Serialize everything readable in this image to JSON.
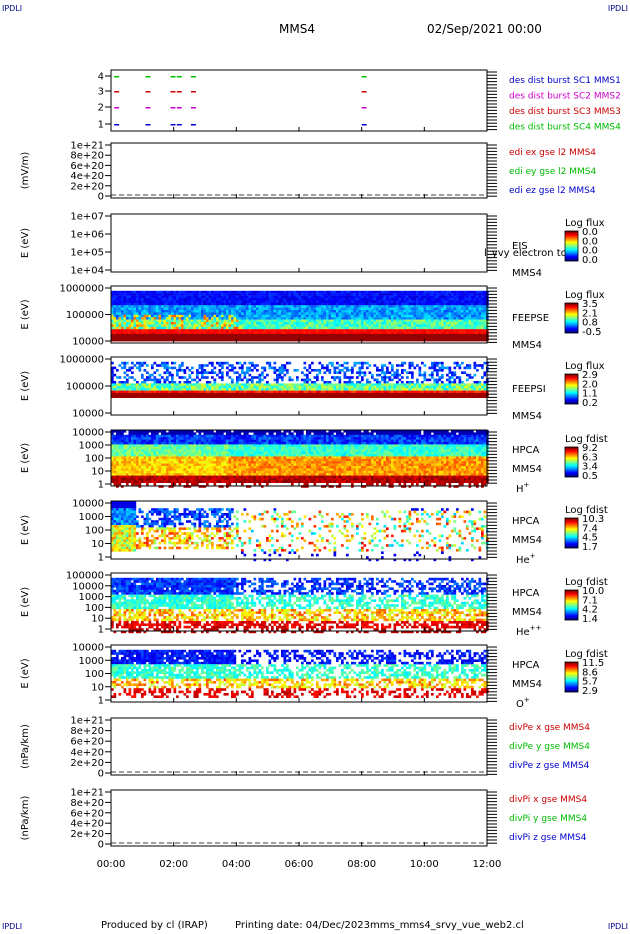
{
  "corner_label": "IPDLI",
  "header": {
    "title": "MMS4",
    "datetime": "02/Sep/2021 00:00"
  },
  "footer": {
    "produced_by": "Produced by cl (IRAP)",
    "printing_date": "Printing date: 04/Dec/2023",
    "file": "mms_mms4_srvy_vue_web2.cl"
  },
  "time_axis": {
    "ticks": [
      "00:00",
      "02:00",
      "04:00",
      "06:00",
      "08:00",
      "10:00",
      "12:00"
    ],
    "range_hours": [
      0,
      12
    ]
  },
  "colors": {
    "red": "#cc0000",
    "green": "#00bb00",
    "blue": "#0000cc",
    "magenta": "#cc00cc"
  },
  "chart_data": [
    {
      "type": "scatter",
      "name": "burst",
      "yticks": [
        "1",
        "2",
        "3",
        "4"
      ],
      "legend": [
        {
          "text": "des dist burst SC1 MMS1",
          "color": "#0000cc"
        },
        {
          "text": "des dist burst SC2 MMS2",
          "color": "#cc00cc"
        },
        {
          "text": "des dist burst SC3 MMS3",
          "color": "#cc0000"
        },
        {
          "text": "des dist burst SC4 MMS4",
          "color": "#00bb00"
        }
      ],
      "bursts_hours": [
        0.1,
        1.1,
        1.9,
        2.1,
        2.55,
        8.0
      ]
    },
    {
      "type": "line",
      "name": "edi",
      "ylabel": "(mV/m)",
      "yticks": [
        "1e+21",
        "8e+20",
        "6e+20",
        "4e+20",
        "2e+20",
        "0"
      ],
      "legend": [
        {
          "text": "edi ex gse l2 MMS4",
          "color": "#cc0000"
        },
        {
          "text": "edi ey gse l2 MMS4",
          "color": "#00bb00"
        },
        {
          "text": "edi ez gse l2 MMS4",
          "color": "#0000cc"
        }
      ]
    },
    {
      "type": "heatmap",
      "name": "eis",
      "ylabel": "E (eV)",
      "yticks": [
        "1e+07",
        "1e+06",
        "1e+05",
        "1e+04"
      ],
      "instrument": [
        "EIS",
        "MMS4"
      ],
      "overlay_text": "l_yvy electron to",
      "cbar_title": "Log flux",
      "cbar_ticks": [
        "0.0",
        "0.0",
        "0.0",
        "0.0"
      ]
    },
    {
      "type": "heatmap",
      "name": "feepse",
      "ylabel": "E (eV)",
      "yticks": [
        "1000000",
        "100000",
        "10000"
      ],
      "instrument": [
        "FEEPSE",
        "MMS4"
      ],
      "cbar_title": "Log flux",
      "cbar_ticks": [
        "3.5",
        "2.1",
        "0.8",
        "-0.5"
      ]
    },
    {
      "type": "heatmap",
      "name": "feepsi",
      "ylabel": "E (eV)",
      "yticks": [
        "1000000",
        "100000",
        "10000"
      ],
      "instrument": [
        "FEEPSI",
        "MMS4"
      ],
      "cbar_title": "Log flux",
      "cbar_ticks": [
        "2.9",
        "2.0",
        "1.1",
        "0.2"
      ]
    },
    {
      "type": "heatmap",
      "name": "hpca-h",
      "ylabel": "E (eV)",
      "yticks": [
        "10000",
        "1000",
        "100",
        "10",
        "1"
      ],
      "instrument": [
        "HPCA",
        "MMS4"
      ],
      "species": "H",
      "species_sup": "+",
      "cbar_title": "Log fdist",
      "cbar_ticks": [
        "9.2",
        "6.3",
        "3.4",
        "0.5"
      ]
    },
    {
      "type": "heatmap",
      "name": "hpca-he",
      "ylabel": "E (eV)",
      "yticks": [
        "10000",
        "1000",
        "100",
        "10",
        "1"
      ],
      "instrument": [
        "HPCA",
        "MMS4"
      ],
      "species": "He",
      "species_sup": "+",
      "cbar_title": "Log fdist",
      "cbar_ticks": [
        "10.3",
        "7.4",
        "4.5",
        "1.7"
      ]
    },
    {
      "type": "heatmap",
      "name": "hpca-hepp",
      "ylabel": "E (eV)",
      "yticks": [
        "100000",
        "10000",
        "1000",
        "100",
        "10",
        "1"
      ],
      "instrument": [
        "HPCA",
        "MMS4"
      ],
      "species": "He",
      "species_sup": "++",
      "cbar_title": "Log fdist",
      "cbar_ticks": [
        "10.0",
        "7.1",
        "4.2",
        "1.4"
      ]
    },
    {
      "type": "heatmap",
      "name": "hpca-o",
      "ylabel": "E (eV)",
      "yticks": [
        "10000",
        "1000",
        "100",
        "10",
        "1"
      ],
      "instrument": [
        "HPCA",
        "MMS4"
      ],
      "species": "O",
      "species_sup": "+",
      "cbar_title": "Log fdist",
      "cbar_ticks": [
        "11.5",
        "8.6",
        "5.7",
        "2.9"
      ]
    },
    {
      "type": "line",
      "name": "divpe",
      "ylabel": "(nPa/km)",
      "yticks": [
        "1e+21",
        "8e+20",
        "6e+20",
        "4e+20",
        "2e+20",
        "0"
      ],
      "legend": [
        {
          "text": "divPe x gse MMS4",
          "color": "#cc0000"
        },
        {
          "text": "divPe y gse MMS4",
          "color": "#00bb00"
        },
        {
          "text": "divPe z gse MMS4",
          "color": "#0000cc"
        }
      ]
    },
    {
      "type": "line",
      "name": "divpi",
      "ylabel": "(nPa/km)",
      "yticks": [
        "1e+21",
        "8e+20",
        "6e+20",
        "4e+20",
        "2e+20",
        "0"
      ],
      "legend": [
        {
          "text": "divPi x gse MMS4",
          "color": "#cc0000"
        },
        {
          "text": "divPi y gse MMS4",
          "color": "#00bb00"
        },
        {
          "text": "divPi z gse MMS4",
          "color": "#0000cc"
        }
      ]
    }
  ]
}
